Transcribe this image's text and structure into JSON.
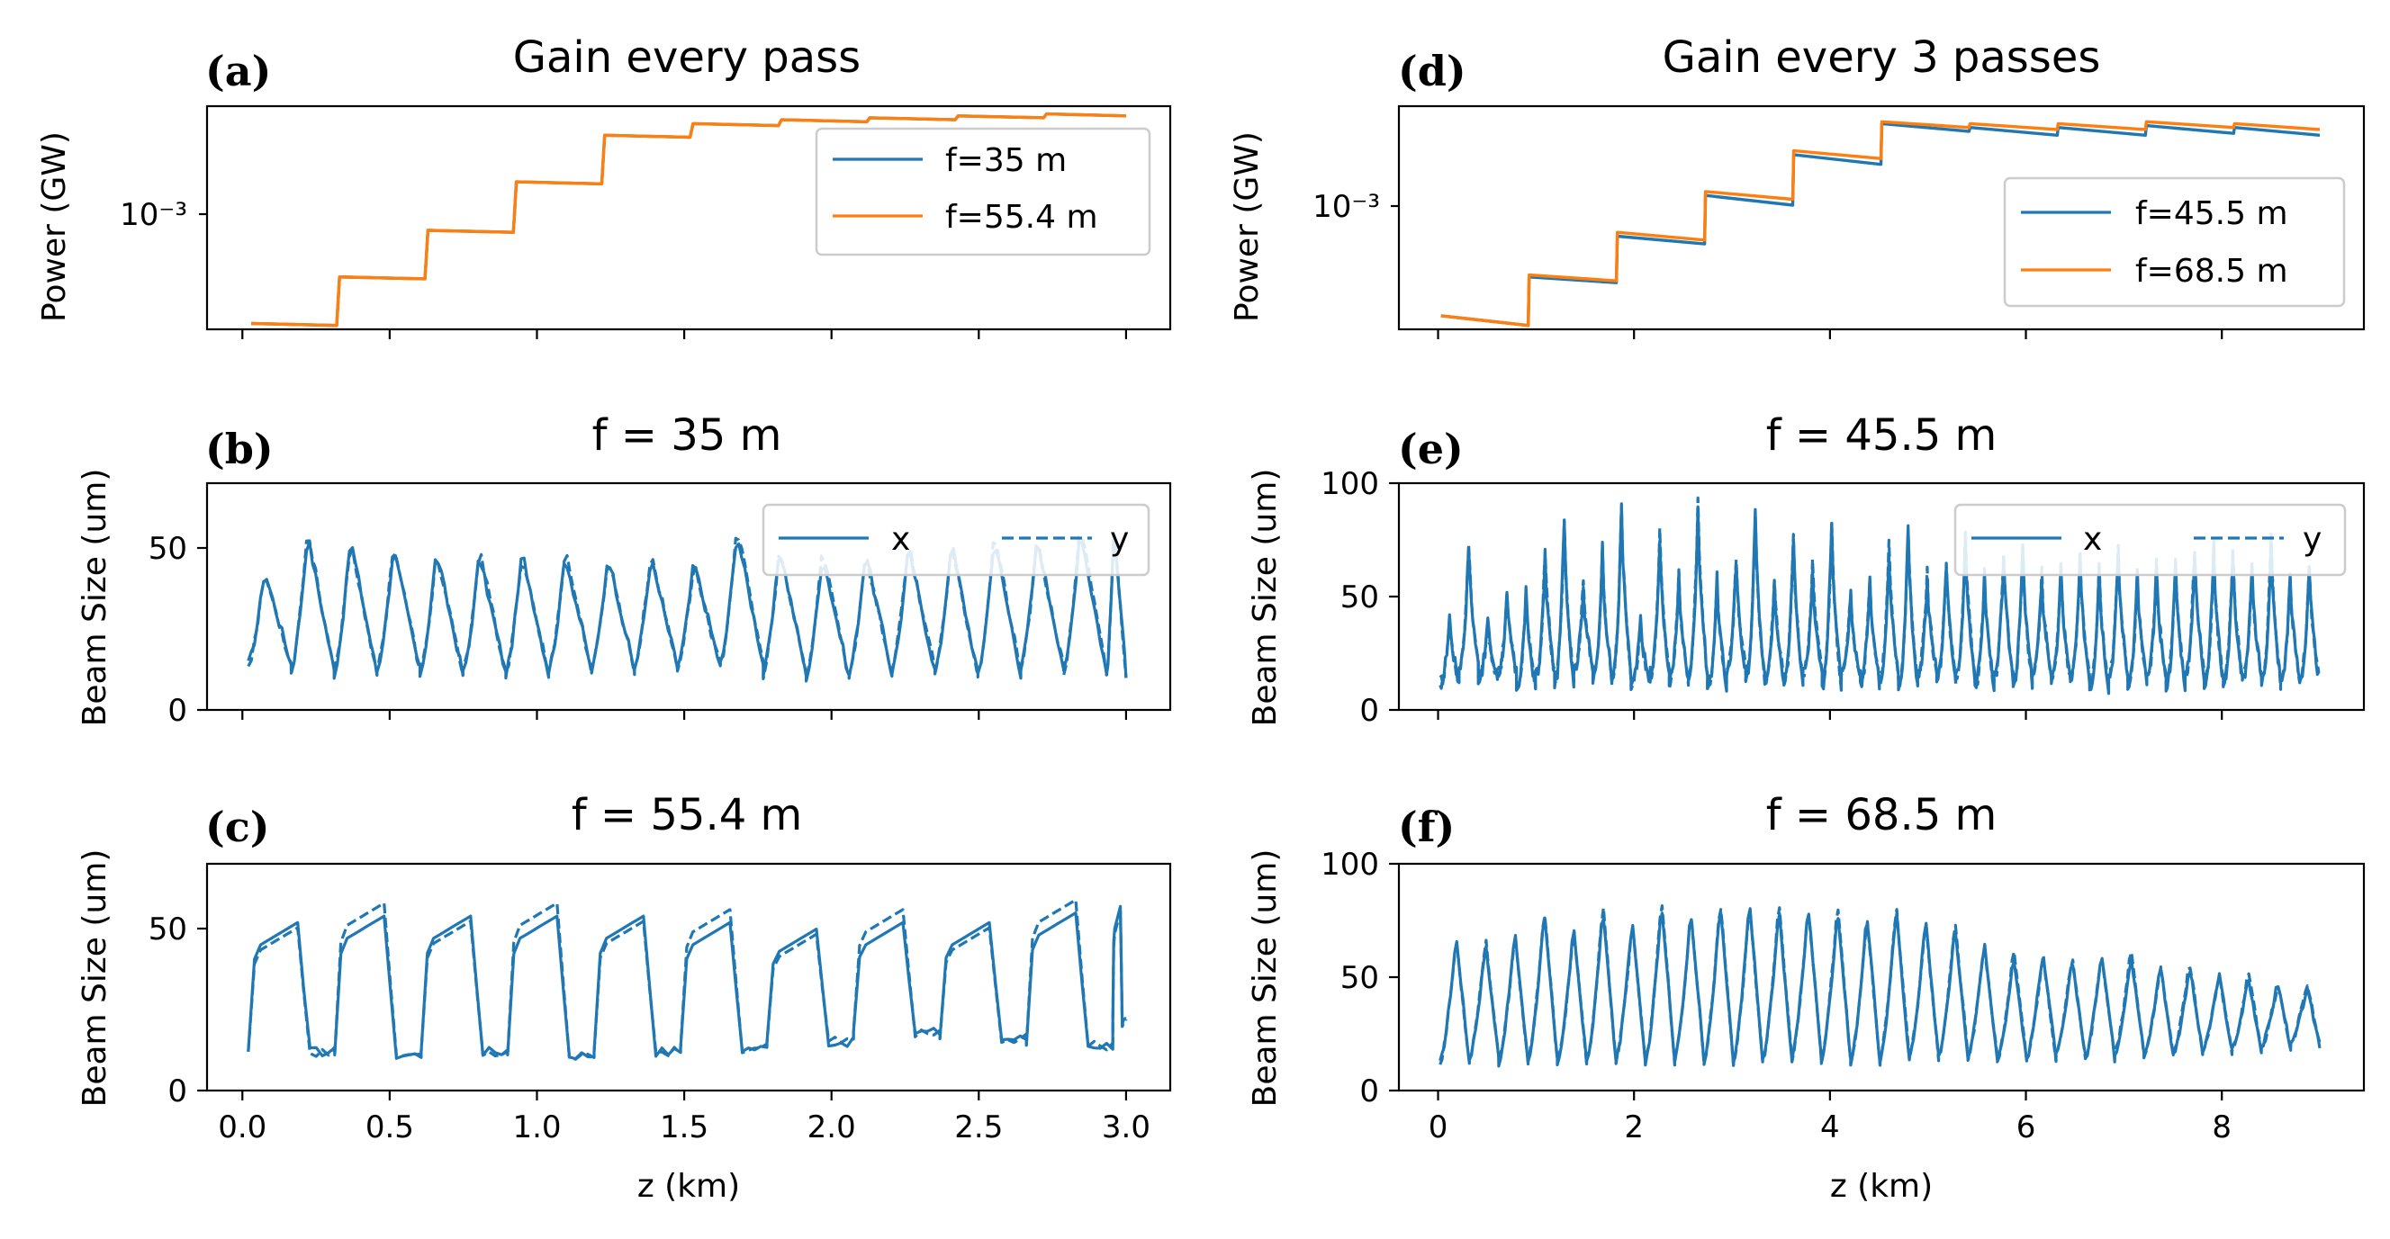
{
  "colors": {
    "blue": "#1f77b4",
    "orange": "#ff7f0e"
  },
  "chart_data": [
    {
      "id": "a",
      "type": "line",
      "panel_label": "(a)",
      "title": "Gain every pass",
      "ylabel": "Power (GW)",
      "yscale": "log",
      "ytick_label": "10⁻³",
      "xlim": [
        -0.12,
        3.15
      ],
      "ylim_log10": [
        -3.55,
        -2.4
      ],
      "xticks": [
        0,
        0.5,
        1,
        1.5,
        2,
        2.5,
        3
      ],
      "show_xticklabels": false,
      "legend": {
        "placement": "upper right",
        "ncol": 1
      },
      "series": [
        {
          "name": "f=35 m",
          "color": "#1f77b4",
          "style": "solid",
          "x": [
            0.03,
            0.32,
            0.33,
            0.62,
            0.63,
            0.92,
            0.93,
            1.22,
            1.23,
            1.52,
            1.53,
            1.82,
            1.83,
            2.12,
            2.13,
            2.42,
            2.43,
            2.72,
            2.73,
            3.0
          ],
          "y_log10": [
            -3.52,
            -3.53,
            -3.28,
            -3.29,
            -3.04,
            -3.05,
            -2.79,
            -2.8,
            -2.55,
            -2.56,
            -2.49,
            -2.5,
            -2.47,
            -2.48,
            -2.46,
            -2.47,
            -2.45,
            -2.46,
            -2.44,
            -2.45
          ]
        },
        {
          "name": "f=55.4 m",
          "color": "#ff7f0e",
          "style": "solid",
          "x": [
            0.03,
            0.32,
            0.33,
            0.62,
            0.63,
            0.92,
            0.93,
            1.22,
            1.23,
            1.52,
            1.53,
            1.82,
            1.83,
            2.12,
            2.13,
            2.42,
            2.43,
            2.72,
            2.73,
            3.0
          ],
          "y_log10": [
            -3.52,
            -3.53,
            -3.28,
            -3.29,
            -3.04,
            -3.05,
            -2.79,
            -2.8,
            -2.55,
            -2.56,
            -2.49,
            -2.5,
            -2.47,
            -2.48,
            -2.46,
            -2.47,
            -2.45,
            -2.46,
            -2.44,
            -2.45
          ]
        }
      ]
    },
    {
      "id": "d",
      "type": "line",
      "panel_label": "(d)",
      "title": "Gain every 3 passes",
      "ylabel": "Power (GW)",
      "yscale": "log",
      "ytick_label": "10⁻³",
      "xlim": [
        -0.4,
        9.45
      ],
      "ylim_log10": [
        -3.6,
        -2.45
      ],
      "xticks": [
        0,
        2,
        4,
        6,
        8
      ],
      "show_xticklabels": false,
      "legend": {
        "placement": "lower right",
        "ncol": 1
      },
      "series": [
        {
          "name": "f=45.5 m",
          "color": "#1f77b4",
          "style": "solid",
          "x": [
            0.03,
            0.92,
            0.93,
            1.82,
            1.83,
            2.72,
            2.73,
            3.62,
            3.63,
            4.52,
            4.53,
            5.42,
            5.43,
            6.32,
            6.33,
            7.22,
            7.23,
            8.12,
            8.13,
            9.0
          ],
          "y_log10": [
            -3.53,
            -3.58,
            -3.33,
            -3.36,
            -3.12,
            -3.16,
            -2.91,
            -2.96,
            -2.7,
            -2.75,
            -2.54,
            -2.58,
            -2.56,
            -2.6,
            -2.56,
            -2.6,
            -2.55,
            -2.59,
            -2.56,
            -2.6
          ]
        },
        {
          "name": "f=68.5 m",
          "color": "#ff7f0e",
          "style": "solid",
          "x": [
            0.03,
            0.92,
            0.93,
            1.82,
            1.83,
            2.72,
            2.73,
            3.62,
            3.63,
            4.52,
            4.53,
            5.42,
            5.43,
            6.32,
            6.33,
            7.22,
            7.23,
            8.12,
            8.13,
            9.0
          ],
          "y_log10": [
            -3.53,
            -3.58,
            -3.32,
            -3.35,
            -3.1,
            -3.14,
            -2.89,
            -2.93,
            -2.68,
            -2.72,
            -2.53,
            -2.56,
            -2.54,
            -2.57,
            -2.54,
            -2.57,
            -2.53,
            -2.56,
            -2.54,
            -2.57
          ]
        }
      ]
    },
    {
      "id": "b",
      "type": "line",
      "panel_label": "(b)",
      "title": "f = 35 m",
      "ylabel": "Beam Size (um)",
      "xlim": [
        -0.12,
        3.15
      ],
      "ylim": [
        0,
        70
      ],
      "yticks": [
        0,
        50
      ],
      "xticks": [
        0,
        0.5,
        1,
        1.5,
        2,
        2.5,
        3
      ],
      "show_xticklabels": false,
      "legend": {
        "placement": "upper right",
        "ncol": 2
      },
      "generator": {
        "kind": "sawtooth",
        "x_start": 0.02,
        "x_end": 3.0,
        "period_km": 0.1457,
        "peak_frac": 0.38,
        "min_values": [
          14,
          12,
          11,
          12,
          11,
          11,
          11,
          12,
          12,
          13,
          13,
          14,
          11,
          10,
          11,
          12,
          11,
          11,
          13,
          11,
          11
        ],
        "peak_values": [
          43,
          54,
          53,
          50,
          49,
          48,
          49,
          48,
          48,
          47,
          46,
          55,
          50,
          48,
          49,
          50,
          52,
          53,
          53,
          56,
          57
        ],
        "y_offset": 1.8
      },
      "series": [
        {
          "name": "x",
          "color": "#1f77b4",
          "style": "solid"
        },
        {
          "name": "y",
          "color": "#1f77b4",
          "style": "dashed"
        }
      ]
    },
    {
      "id": "e",
      "type": "line",
      "panel_label": "(e)",
      "title": "f = 45.5 m",
      "ylabel": "Beam Size (um)",
      "xlim": [
        -0.4,
        9.45
      ],
      "ylim": [
        0,
        100
      ],
      "yticks": [
        0,
        50,
        100
      ],
      "xticks": [
        0,
        2,
        4,
        6,
        8
      ],
      "show_xticklabels": false,
      "legend": {
        "placement": "upper right",
        "ncol": 2
      },
      "generator": {
        "kind": "spiky",
        "x_start": 0.02,
        "x_end": 9.0,
        "period_km": 0.195,
        "peak_frac": 0.5,
        "min_values": [
          12,
          20,
          14,
          16,
          10,
          15,
          12,
          18,
          13,
          14,
          11,
          16,
          12,
          15,
          10,
          17,
          13,
          14,
          12,
          16,
          11,
          15,
          12,
          14,
          10,
          16,
          13,
          15,
          11,
          14,
          12,
          16,
          13,
          14,
          10,
          15,
          12,
          14,
          11,
          15,
          12,
          13,
          14,
          12,
          13,
          14
        ],
        "peak_values": [
          42,
          73,
          40,
          50,
          52,
          68,
          86,
          55,
          72,
          89,
          40,
          75,
          60,
          90,
          58,
          65,
          88,
          55,
          78,
          62,
          85,
          50,
          60,
          70,
          82,
          58,
          66,
          74,
          60,
          68,
          72,
          58,
          62,
          66,
          64,
          70,
          60,
          62,
          65,
          70,
          72,
          68,
          62,
          74,
          60,
          62
        ],
        "y_offset": 2.5
      },
      "series": [
        {
          "name": "x",
          "color": "#1f77b4",
          "style": "solid"
        },
        {
          "name": "y",
          "color": "#1f77b4",
          "style": "dashed"
        }
      ]
    },
    {
      "id": "c",
      "type": "line",
      "panel_label": "(c)",
      "title": "f = 55.4 m",
      "ylabel": "Beam Size (um)",
      "xlabel": "z (km)",
      "xlim": [
        -0.12,
        3.15
      ],
      "ylim": [
        0,
        70
      ],
      "yticks": [
        0,
        50
      ],
      "xticks": [
        0,
        0.5,
        1,
        1.5,
        2,
        2.5,
        3
      ],
      "show_xticklabels": true,
      "xticklabels": [
        "0.0",
        "0.5",
        "1.0",
        "1.5",
        "2.0",
        "2.5",
        "3.0"
      ],
      "generator": {
        "kind": "plateau",
        "x_start": 0.02,
        "x_end": 3.0,
        "period_km": 0.2935,
        "min_values": [
          12,
          11,
          12,
          11,
          12,
          13,
          15,
          18,
          16,
          14,
          21
        ],
        "peak_values": [
          52,
          54,
          54,
          54,
          54,
          52,
          50,
          52,
          52,
          55,
          57
        ],
        "y_offset": 4
      },
      "series": [
        {
          "name": "x",
          "color": "#1f77b4",
          "style": "solid"
        },
        {
          "name": "y",
          "color": "#1f77b4",
          "style": "dashed"
        }
      ]
    },
    {
      "id": "f",
      "type": "line",
      "panel_label": "(f)",
      "title": "f = 68.5 m",
      "ylabel": "Beam Size (um)",
      "xlabel": "z (km)",
      "xlim": [
        -0.4,
        9.45
      ],
      "ylim": [
        0,
        100
      ],
      "yticks": [
        0,
        50,
        100
      ],
      "xticks": [
        0,
        2,
        4,
        6,
        8
      ],
      "show_xticklabels": true,
      "xticklabels": [
        "0",
        "2",
        "4",
        "6",
        "8"
      ],
      "generator": {
        "kind": "sawtooth",
        "x_start": 0.02,
        "x_end": 9.0,
        "period_km": 0.2994,
        "peak_frac": 0.55,
        "min_values": [
          12,
          14,
          12,
          13,
          12,
          12,
          13,
          12,
          13,
          12,
          12,
          13,
          14,
          13,
          12,
          13,
          14,
          15,
          14,
          13,
          14,
          15,
          14,
          16,
          15,
          16,
          17,
          18,
          19,
          20
        ],
        "peak_values": [
          68,
          65,
          70,
          78,
          72,
          80,
          76,
          83,
          80,
          82,
          84,
          80,
          82,
          80,
          78,
          80,
          76,
          72,
          66,
          60,
          62,
          58,
          62,
          60,
          56,
          55,
          52,
          50,
          48,
          45
        ],
        "y_offset": 2.5
      },
      "series": [
        {
          "name": "x",
          "color": "#1f77b4",
          "style": "solid"
        },
        {
          "name": "y",
          "color": "#1f77b4",
          "style": "dashed"
        }
      ]
    }
  ]
}
